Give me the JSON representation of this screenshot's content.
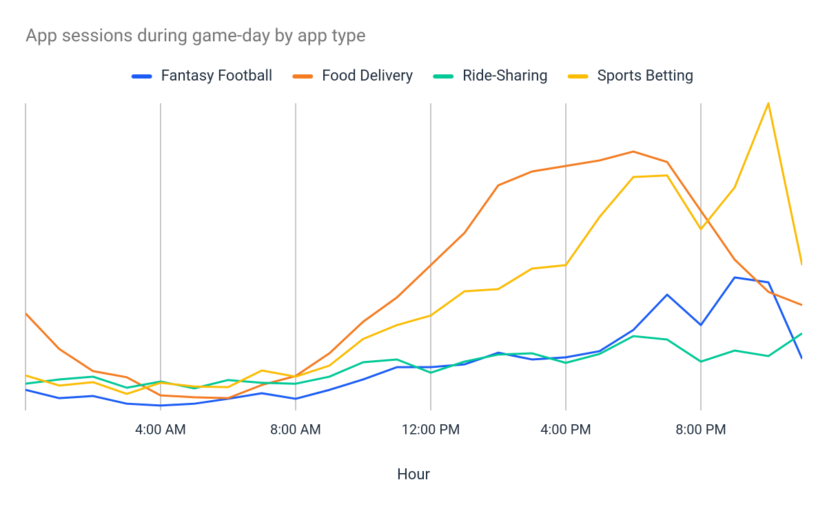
{
  "chart_data": {
    "type": "line",
    "title": "App sessions during game-day by app type",
    "x_label": "Hour",
    "x": [
      0,
      1,
      2,
      3,
      4,
      5,
      6,
      7,
      8,
      9,
      10,
      11,
      12,
      13,
      14,
      15,
      16,
      17,
      18,
      19,
      20,
      21,
      22,
      23
    ],
    "xlim": [
      0,
      23
    ],
    "xticks": [
      {
        "value": 4,
        "label": "4:00 AM"
      },
      {
        "value": 8,
        "label": "8:00 AM"
      },
      {
        "value": 12,
        "label": "12:00 PM"
      },
      {
        "value": 16,
        "label": "4:00 PM"
      },
      {
        "value": 20,
        "label": "8:00 PM"
      }
    ],
    "ylim": [
      0,
      100
    ],
    "grid": true,
    "legend": "top",
    "series": [
      {
        "name": "Fantasy Football",
        "color": "#1a5cf5",
        "values": [
          6.7,
          4.0,
          4.7,
          2.2,
          1.6,
          2.2,
          3.8,
          5.6,
          3.8,
          6.7,
          10.1,
          14.1,
          14.1,
          15.0,
          18.8,
          16.6,
          17.3,
          19.3,
          26.2,
          37.7,
          27.8,
          43.3,
          41.7,
          16.8
        ]
      },
      {
        "name": "Food Delivery",
        "color": "#f47b20",
        "values": [
          31.6,
          20.0,
          12.8,
          10.8,
          4.9,
          4.3,
          4.0,
          8.3,
          11.2,
          18.6,
          28.9,
          36.8,
          47.3,
          57.8,
          73.3,
          77.8,
          79.6,
          81.4,
          84.3,
          80.9,
          65.0,
          49.1,
          38.6,
          34.3
        ]
      },
      {
        "name": "Ride-Sharing",
        "color": "#00c896",
        "values": [
          8.7,
          10.1,
          11.0,
          7.4,
          9.4,
          7.2,
          9.9,
          9.0,
          8.7,
          11.0,
          15.7,
          16.6,
          12.3,
          15.9,
          18.2,
          18.6,
          15.5,
          18.4,
          24.2,
          23.1,
          15.9,
          19.5,
          17.7,
          25.1
        ]
      },
      {
        "name": "Sports Betting",
        "color": "#fbbc04",
        "values": [
          11.4,
          8.1,
          9.2,
          5.4,
          9.0,
          7.8,
          7.6,
          13.0,
          11.0,
          14.6,
          23.3,
          27.8,
          30.9,
          38.8,
          39.5,
          46.2,
          47.3,
          63.0,
          76.0,
          76.5,
          59.0,
          72.6,
          100,
          47.3
        ]
      }
    ]
  }
}
